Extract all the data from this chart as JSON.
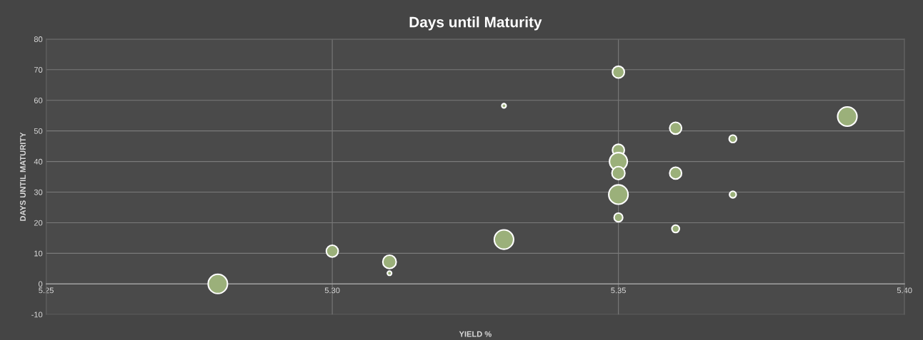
{
  "chart_data": {
    "type": "bubble",
    "title": "Days until Maturity",
    "xlabel": "YIELD %",
    "ylabel": "DAYS UNTIL MATURITY",
    "x": [
      5.28,
      5.3,
      5.31,
      5.31,
      5.33,
      5.33,
      5.35,
      5.35,
      5.35,
      5.35,
      5.35,
      5.35,
      5.36,
      5.36,
      5.36,
      5.37,
      5.37,
      5.39
    ],
    "values": [
      0,
      10.7,
      7.2,
      3.5,
      14.5,
      58.2,
      69.2,
      43.7,
      40,
      36.2,
      29.2,
      21.7,
      50.9,
      36.2,
      18,
      47.4,
      29.2,
      54.7
    ],
    "sizes": [
      1,
      0.38,
      0.48,
      0.05,
      1,
      0.05,
      0.38,
      0.38,
      0.85,
      0.45,
      1,
      0.2,
      0.38,
      0.38,
      0.15,
      0.15,
      0.12,
      1
    ],
    "color": "#9bb07a",
    "xlim": [
      5.25,
      5.4
    ],
    "ylim": [
      -10,
      80
    ],
    "xticks": [
      {
        "value": 5.25,
        "label": "5.25"
      },
      {
        "value": 5.3,
        "label": "5.30"
      },
      {
        "value": 5.35,
        "label": "5.35"
      },
      {
        "value": 5.4,
        "label": "5.40"
      }
    ],
    "yticks": [
      -10,
      0,
      10,
      20,
      30,
      40,
      50,
      60,
      70,
      80
    ],
    "grid": true,
    "legend": false
  }
}
